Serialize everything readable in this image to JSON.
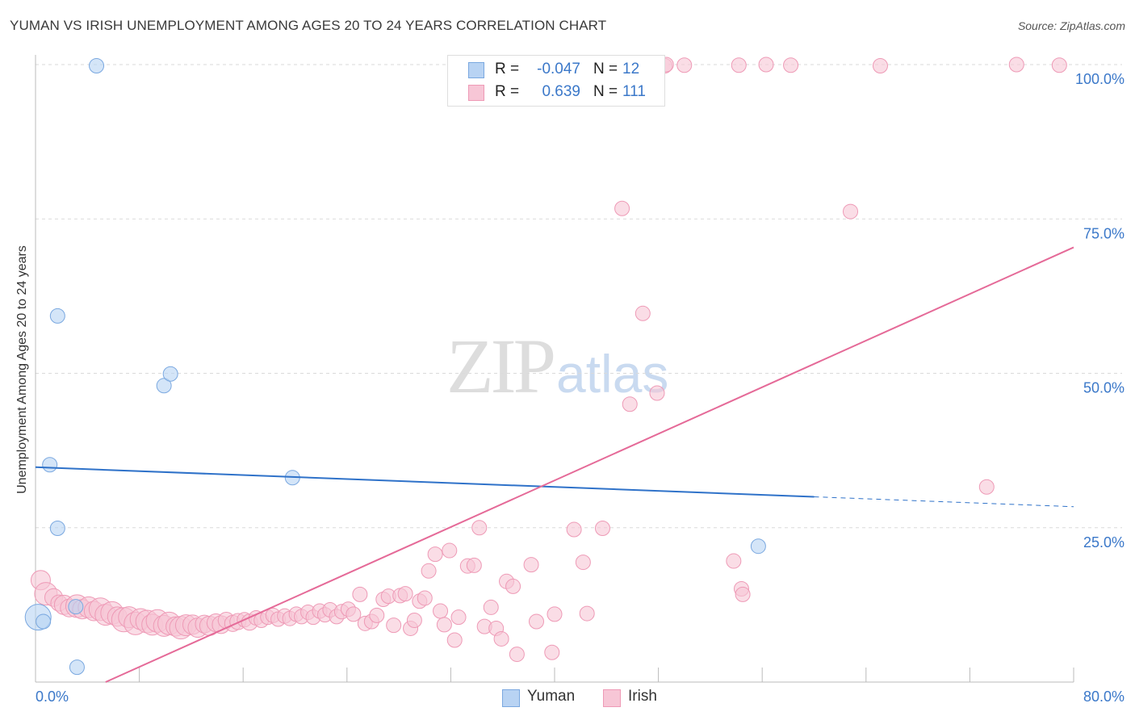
{
  "title": "YUMAN VS IRISH UNEMPLOYMENT AMONG AGES 20 TO 24 YEARS CORRELATION CHART",
  "source": "Source: ZipAtlas.com",
  "watermark": {
    "zip": "ZIP",
    "atlas": "atlas"
  },
  "colors": {
    "yuman_fill": "#b8d3f3",
    "yuman_stroke": "#7aa8e0",
    "yuman_line": "#2f72c9",
    "irish_fill": "#f7c6d6",
    "irish_stroke": "#ee9ab6",
    "irish_line": "#e56a98",
    "tick_label": "#3b78c9",
    "grid": "#dadada"
  },
  "legend": {
    "rows": [
      {
        "series": "Yuman",
        "r_label": "R =",
        "r_value": "-0.047",
        "n_label": "N =",
        "n_value": "12"
      },
      {
        "series": "Irish",
        "r_label": "R =",
        "r_value": "0.639",
        "n_label": "N =",
        "n_value": "111"
      }
    ]
  },
  "bottom_legend": [
    "Yuman",
    "Irish"
  ],
  "chart_data": {
    "type": "scatter",
    "title": "YUMAN VS IRISH UNEMPLOYMENT AMONG AGES 20 TO 24 YEARS CORRELATION CHART",
    "xlabel": "",
    "ylabel": "Unemployment Among Ages 20 to 24 years",
    "xlim": [
      0,
      80
    ],
    "ylim": [
      0,
      100
    ],
    "x_tick_labels": [
      "0.0%",
      "80.0%"
    ],
    "y_ticks": [
      25,
      50,
      75,
      100
    ],
    "y_tick_labels": [
      "25.0%",
      "50.0%",
      "75.0%",
      "100.0%"
    ],
    "grid": true,
    "legend_position": "top-center",
    "series": [
      {
        "name": "Yuman",
        "r": -0.047,
        "n": 12,
        "trend": {
          "x0": 0,
          "y0": 34.8,
          "x1": 60,
          "y1": 30.0,
          "dashed_to_x": 80,
          "dashed_to_y": 28.4
        },
        "points": [
          [
            0.2,
            10.5,
            16
          ],
          [
            0.6,
            9.8,
            9
          ],
          [
            1.1,
            35.2,
            9
          ],
          [
            1.7,
            59.3,
            9
          ],
          [
            1.7,
            24.9,
            9
          ],
          [
            3.1,
            12.2,
            9
          ],
          [
            3.2,
            2.4,
            9
          ],
          [
            4.7,
            99.8,
            9
          ],
          [
            9.9,
            48.0,
            9
          ],
          [
            10.4,
            49.9,
            9
          ],
          [
            19.8,
            33.1,
            9
          ],
          [
            55.7,
            22.0,
            9
          ]
        ]
      },
      {
        "name": "Irish",
        "r": 0.639,
        "n": 111,
        "trend": {
          "x0": 5.4,
          "y0": 0,
          "x1": 80,
          "y1": 70.4
        },
        "points": [
          [
            0.4,
            16.5,
            12
          ],
          [
            0.8,
            14.3,
            14
          ],
          [
            1.4,
            13.7,
            11
          ],
          [
            1.8,
            12.8,
            10
          ],
          [
            2.2,
            12.5,
            12
          ],
          [
            2.6,
            12.0,
            11
          ],
          [
            3.2,
            12.3,
            14
          ],
          [
            3.6,
            11.8,
            12
          ],
          [
            4.1,
            12.1,
            13
          ],
          [
            4.5,
            11.5,
            12
          ],
          [
            5.0,
            11.8,
            14
          ],
          [
            5.4,
            10.9,
            13
          ],
          [
            5.9,
            11.2,
            14
          ],
          [
            6.3,
            10.6,
            12
          ],
          [
            6.8,
            10.1,
            15
          ],
          [
            7.2,
            10.5,
            13
          ],
          [
            7.7,
            9.5,
            14
          ],
          [
            8.1,
            10.2,
            13
          ],
          [
            8.6,
            9.8,
            14
          ],
          [
            9.0,
            9.3,
            13
          ],
          [
            9.4,
            9.9,
            14
          ],
          [
            9.9,
            9.1,
            13
          ],
          [
            10.3,
            9.5,
            14
          ],
          [
            10.8,
            9.0,
            12
          ],
          [
            11.2,
            8.8,
            14
          ],
          [
            11.6,
            9.2,
            13
          ],
          [
            12.1,
            9.3,
            12
          ],
          [
            12.5,
            8.8,
            12
          ],
          [
            13.0,
            9.4,
            11
          ],
          [
            13.4,
            9.1,
            12
          ],
          [
            13.9,
            9.6,
            11
          ],
          [
            14.3,
            9.3,
            11
          ],
          [
            14.7,
            10.0,
            10
          ],
          [
            15.2,
            9.5,
            10
          ],
          [
            15.6,
            9.8,
            10
          ],
          [
            16.1,
            10.1,
            9
          ],
          [
            16.5,
            9.7,
            10
          ],
          [
            17.0,
            10.4,
            9
          ],
          [
            17.4,
            10.0,
            9
          ],
          [
            17.9,
            10.5,
            9
          ],
          [
            18.3,
            10.8,
            9
          ],
          [
            18.7,
            10.2,
            9
          ],
          [
            19.2,
            10.7,
            9
          ],
          [
            19.6,
            10.3,
            9
          ],
          [
            20.1,
            11.0,
            9
          ],
          [
            20.5,
            10.6,
            9
          ],
          [
            21.0,
            11.3,
            9
          ],
          [
            21.4,
            10.5,
            9
          ],
          [
            21.9,
            11.5,
            9
          ],
          [
            22.3,
            10.9,
            9
          ],
          [
            22.7,
            11.7,
            9
          ],
          [
            23.2,
            10.6,
            9
          ],
          [
            23.6,
            11.4,
            9
          ],
          [
            24.1,
            11.8,
            9
          ],
          [
            24.5,
            11.0,
            9
          ],
          [
            25.0,
            14.2,
            9
          ],
          [
            25.4,
            9.5,
            9
          ],
          [
            25.9,
            9.8,
            9
          ],
          [
            26.3,
            10.8,
            9
          ],
          [
            26.8,
            13.4,
            9
          ],
          [
            27.2,
            13.9,
            9
          ],
          [
            27.6,
            9.2,
            9
          ],
          [
            28.1,
            14.0,
            9
          ],
          [
            28.5,
            14.3,
            9
          ],
          [
            28.9,
            8.7,
            9
          ],
          [
            29.2,
            10.0,
            9
          ],
          [
            29.6,
            13.1,
            9
          ],
          [
            30.0,
            13.6,
            9
          ],
          [
            30.3,
            18.0,
            9
          ],
          [
            30.8,
            20.7,
            9
          ],
          [
            31.2,
            11.5,
            9
          ],
          [
            31.5,
            9.3,
            9
          ],
          [
            31.9,
            21.3,
            9
          ],
          [
            32.3,
            6.8,
            9
          ],
          [
            32.6,
            10.5,
            9
          ],
          [
            33.3,
            18.8,
            9
          ],
          [
            33.8,
            18.9,
            9
          ],
          [
            34.2,
            25.0,
            9
          ],
          [
            34.6,
            9.0,
            9
          ],
          [
            35.1,
            12.1,
            9
          ],
          [
            35.5,
            8.7,
            9
          ],
          [
            35.9,
            7.0,
            9
          ],
          [
            36.3,
            16.3,
            9
          ],
          [
            36.8,
            15.5,
            9
          ],
          [
            37.1,
            4.5,
            9
          ],
          [
            38.2,
            19.0,
            9
          ],
          [
            38.6,
            9.8,
            9
          ],
          [
            39.8,
            4.8,
            9
          ],
          [
            40.0,
            11.0,
            9
          ],
          [
            41.5,
            24.7,
            9
          ],
          [
            42.2,
            19.4,
            9
          ],
          [
            42.5,
            11.1,
            9
          ],
          [
            43.7,
            24.9,
            9
          ],
          [
            45.2,
            76.7,
            9
          ],
          [
            45.8,
            45.0,
            9
          ],
          [
            46.8,
            59.7,
            9
          ],
          [
            47.9,
            46.8,
            9
          ],
          [
            54.4,
            15.1,
            9
          ],
          [
            54.5,
            14.2,
            9
          ],
          [
            53.8,
            19.6,
            9
          ],
          [
            62.8,
            76.2,
            9
          ],
          [
            73.3,
            31.6,
            9
          ],
          [
            48.5,
            99.8,
            9
          ],
          [
            48.6,
            100.0,
            9
          ],
          [
            50.0,
            99.9,
            9
          ],
          [
            54.2,
            99.9,
            9
          ],
          [
            56.3,
            100.0,
            9
          ],
          [
            58.2,
            99.9,
            9
          ],
          [
            65.1,
            99.8,
            9
          ],
          [
            75.6,
            100.0,
            9
          ],
          [
            78.9,
            99.9,
            9
          ]
        ]
      }
    ]
  }
}
